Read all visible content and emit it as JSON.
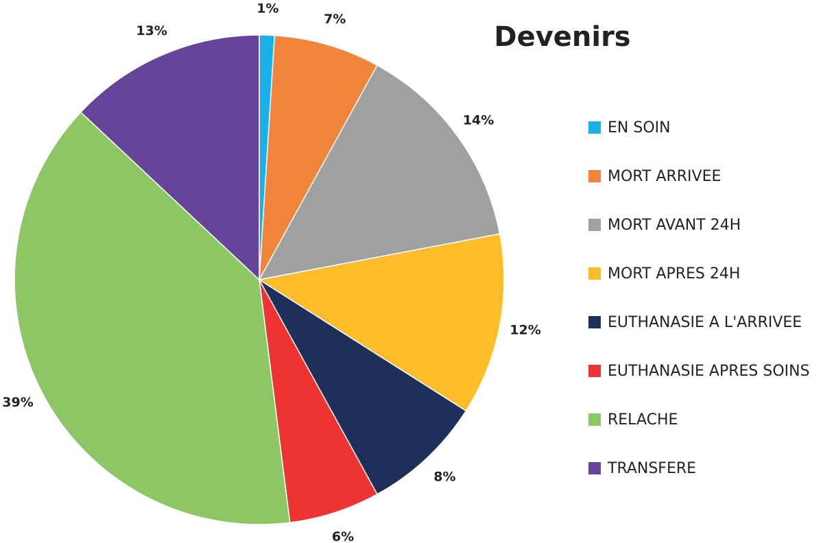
{
  "chart_data": {
    "type": "pie",
    "title": "Devenirs",
    "categories": [
      "EN SOIN",
      "MORT ARRIVEE",
      "MORT AVANT 24H",
      "MORT APRES 24H",
      "EUTHANASIE A L'ARRIVEE",
      "EUTHANASIE APRES SOINS",
      "RELACHE",
      "TRANSFERE"
    ],
    "values": [
      1,
      7,
      14,
      12,
      8,
      6,
      39,
      13
    ],
    "value_labels": [
      "1%",
      "7%",
      "14%",
      "12%",
      "8%",
      "6%",
      "39%",
      "13%"
    ],
    "colors": [
      "#1aafe6",
      "#f0843c",
      "#a0a0a0",
      "#fdbc2a",
      "#1e2f5a",
      "#ee3432",
      "#8cc665",
      "#66449a"
    ],
    "legend": "right"
  }
}
